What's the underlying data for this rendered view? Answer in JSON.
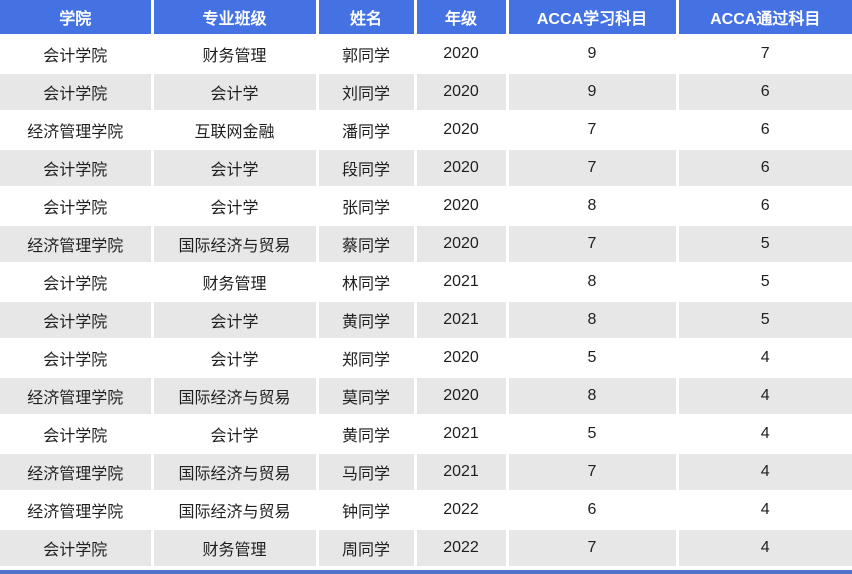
{
  "colors": {
    "header_bg": "#4472e3",
    "header_text": "#ffffff",
    "row_bg": "#ffffff",
    "row_alt_bg": "#e7e7e7",
    "body_text": "#1f1f1f",
    "divider": "#ffffff",
    "bottom_bar": "#4d73c9"
  },
  "chart_data": {
    "type": "table",
    "title": "",
    "columns": [
      "学院",
      "专业班级",
      "姓名",
      "年级",
      "ACCA学习科目",
      "ACCA通过科目"
    ],
    "rows": [
      [
        "会计学院",
        "财务管理",
        "郭同学",
        "2020",
        "9",
        "7"
      ],
      [
        "会计学院",
        "会计学",
        "刘同学",
        "2020",
        "9",
        "6"
      ],
      [
        "经济管理学院",
        "互联网金融",
        "潘同学",
        "2020",
        "7",
        "6"
      ],
      [
        "会计学院",
        "会计学",
        "段同学",
        "2020",
        "7",
        "6"
      ],
      [
        "会计学院",
        "会计学",
        "张同学",
        "2020",
        "8",
        "6"
      ],
      [
        "经济管理学院",
        "国际经济与贸易",
        "蔡同学",
        "2020",
        "7",
        "5"
      ],
      [
        "会计学院",
        "财务管理",
        "林同学",
        "2021",
        "8",
        "5"
      ],
      [
        "会计学院",
        "会计学",
        "黄同学",
        "2021",
        "8",
        "5"
      ],
      [
        "会计学院",
        "会计学",
        "郑同学",
        "2020",
        "5",
        "4"
      ],
      [
        "经济管理学院",
        "国际经济与贸易",
        "莫同学",
        "2020",
        "8",
        "4"
      ],
      [
        "会计学院",
        "会计学",
        "黄同学",
        "2021",
        "5",
        "4"
      ],
      [
        "经济管理学院",
        "国际经济与贸易",
        "马同学",
        "2021",
        "7",
        "4"
      ],
      [
        "经济管理学院",
        "国际经济与贸易",
        "钟同学",
        "2022",
        "6",
        "4"
      ],
      [
        "会计学院",
        "财务管理",
        "周同学",
        "2022",
        "7",
        "4"
      ]
    ]
  }
}
